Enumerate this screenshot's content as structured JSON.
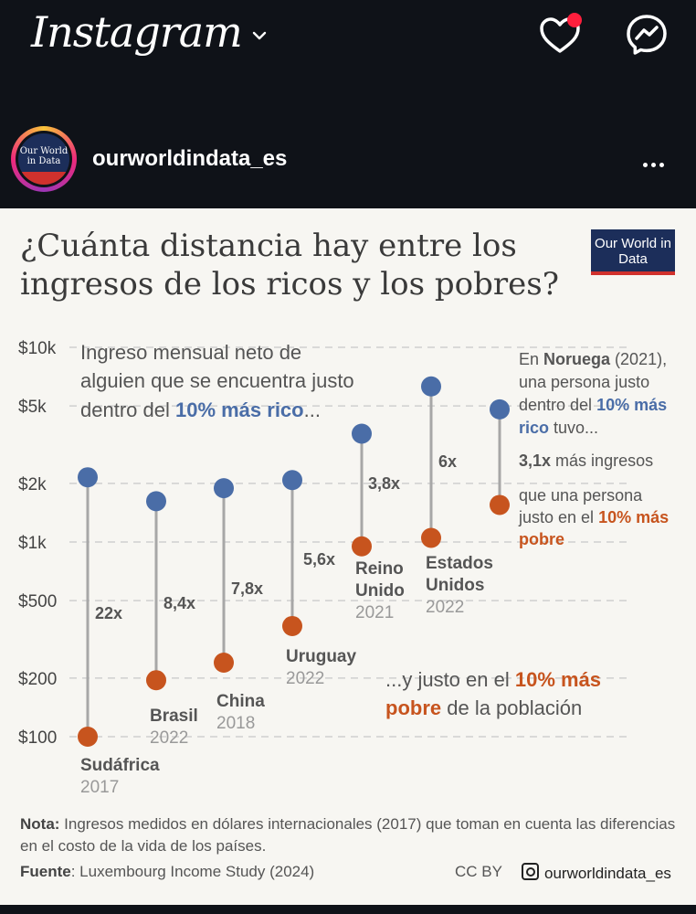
{
  "app": {
    "title": "Instagram"
  },
  "post": {
    "username": "ourworldindata_es",
    "avatar_text": "Our World in Data",
    "logo_text": "Our World in Data",
    "headline": "¿Cuánta distancia hay entre los ingresos de los ricos y los pobres?",
    "annotation_top": {
      "pre": "Ingreso mensual neto de alguien que se encuentra justo dentro del ",
      "em": "10% más rico",
      "post": "..."
    },
    "annotation_bottom": {
      "pre": "...y justo en el ",
      "em1": "10% más",
      "em2": "pobre",
      "post": " de la población"
    },
    "norway": {
      "l1a": "En ",
      "l1b": "Noruega",
      "l1c": " (2021),",
      "l2": "una persona justo",
      "l3a": "dentro del ",
      "l3b": "10% más",
      "l4a": "rico",
      "l4b": " tuvo...",
      "l5a": "3,1x",
      "l5b": " más ingresos",
      "l6": "que una persona",
      "l7a": "justo en el ",
      "l7b": "10% más",
      "l8": "pobre"
    },
    "note_label": "Nota:",
    "note_text": " Ingresos medidos en dólares internacionales (2017) que toman en cuenta las diferencias en el costo de la vida de los países.",
    "source_label": "Fuente",
    "source_text": ": Luxembourg Income Study (2024)",
    "license": "CC BY",
    "handle": "ourworldindata_es",
    "colors": {
      "rich": "#4a6da7",
      "poor": "#c7541e",
      "line": "#a7a7a7"
    }
  },
  "chart_data": {
    "type": "dumbbell",
    "y_scale": "log",
    "y_ticks": [
      "$10k",
      "$5k",
      "$2k",
      "$1k",
      "$500",
      "$200",
      "$100"
    ],
    "y_tick_values": [
      10000,
      5000,
      2000,
      1000,
      500,
      200,
      100
    ],
    "countries": [
      {
        "name": "Sudáfrica",
        "name2": "",
        "year": "2017",
        "rich": 2150,
        "poor": 100,
        "ratio": "22x"
      },
      {
        "name": "Brasil",
        "name2": "",
        "year": "2022",
        "rich": 1620,
        "poor": 195,
        "ratio": "8,4x"
      },
      {
        "name": "China",
        "name2": "",
        "year": "2018",
        "rich": 1890,
        "poor": 240,
        "ratio": "7,8x"
      },
      {
        "name": "Uruguay",
        "name2": "",
        "year": "2022",
        "rich": 2080,
        "poor": 370,
        "ratio": "5,6x"
      },
      {
        "name": "Reino",
        "name2": "Unido",
        "year": "2021",
        "rich": 3600,
        "poor": 950,
        "ratio": "3,8x"
      },
      {
        "name": "Estados",
        "name2": "Unidos",
        "year": "2022",
        "rich": 6300,
        "poor": 1050,
        "ratio": "6x"
      },
      {
        "name": "Noruega",
        "name2": "",
        "year": "2021",
        "rich": 4800,
        "poor": 1550,
        "ratio": "3,1x"
      }
    ]
  }
}
